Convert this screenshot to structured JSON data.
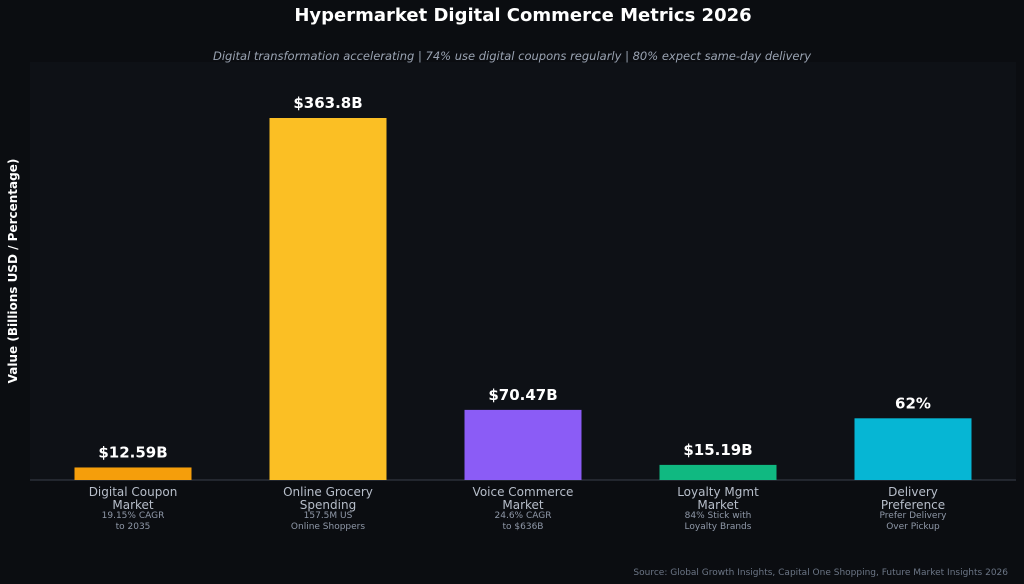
{
  "chart_data": {
    "type": "bar",
    "title": "Hypermarket Digital Commerce Metrics 2026",
    "subtitle": "Digital transformation accelerating | 74% use digital coupons regularly | 80% expect same-day delivery",
    "xlabel": "",
    "ylabel": "Value (Billions USD / Percentage)",
    "source": "Source: Global Growth Insights, Capital One Shopping, Future Market Insights 2026",
    "grid": false,
    "ylim": [
      0,
      400
    ],
    "categories": [
      {
        "label_lines": [
          "Digital Coupon",
          "Market"
        ],
        "note_lines": [
          "19.15% CAGR",
          "to 2035"
        ],
        "value": 12.59,
        "value_label": "$12.59B",
        "color": "#f59e0b"
      },
      {
        "label_lines": [
          "Online Grocery",
          "Spending"
        ],
        "note_lines": [
          "157.5M US",
          "Online Shoppers"
        ],
        "value": 363.8,
        "value_label": "$363.8B",
        "color": "#fbbf24"
      },
      {
        "label_lines": [
          "Voice Commerce",
          "Market"
        ],
        "note_lines": [
          "24.6% CAGR",
          "to $636B"
        ],
        "value": 70.47,
        "value_label": "$70.47B",
        "color": "#8b5cf6"
      },
      {
        "label_lines": [
          "Loyalty Mgmt",
          "Market"
        ],
        "note_lines": [
          "84% Stick with",
          "Loyalty Brands"
        ],
        "value": 15.19,
        "value_label": "$15.19B",
        "color": "#10b981"
      },
      {
        "label_lines": [
          "Delivery",
          "Preference"
        ],
        "note_lines": [
          "Prefer Delivery",
          "Over Pickup"
        ],
        "value": 62,
        "value_label": "62%",
        "color": "#06b6d4"
      }
    ]
  }
}
